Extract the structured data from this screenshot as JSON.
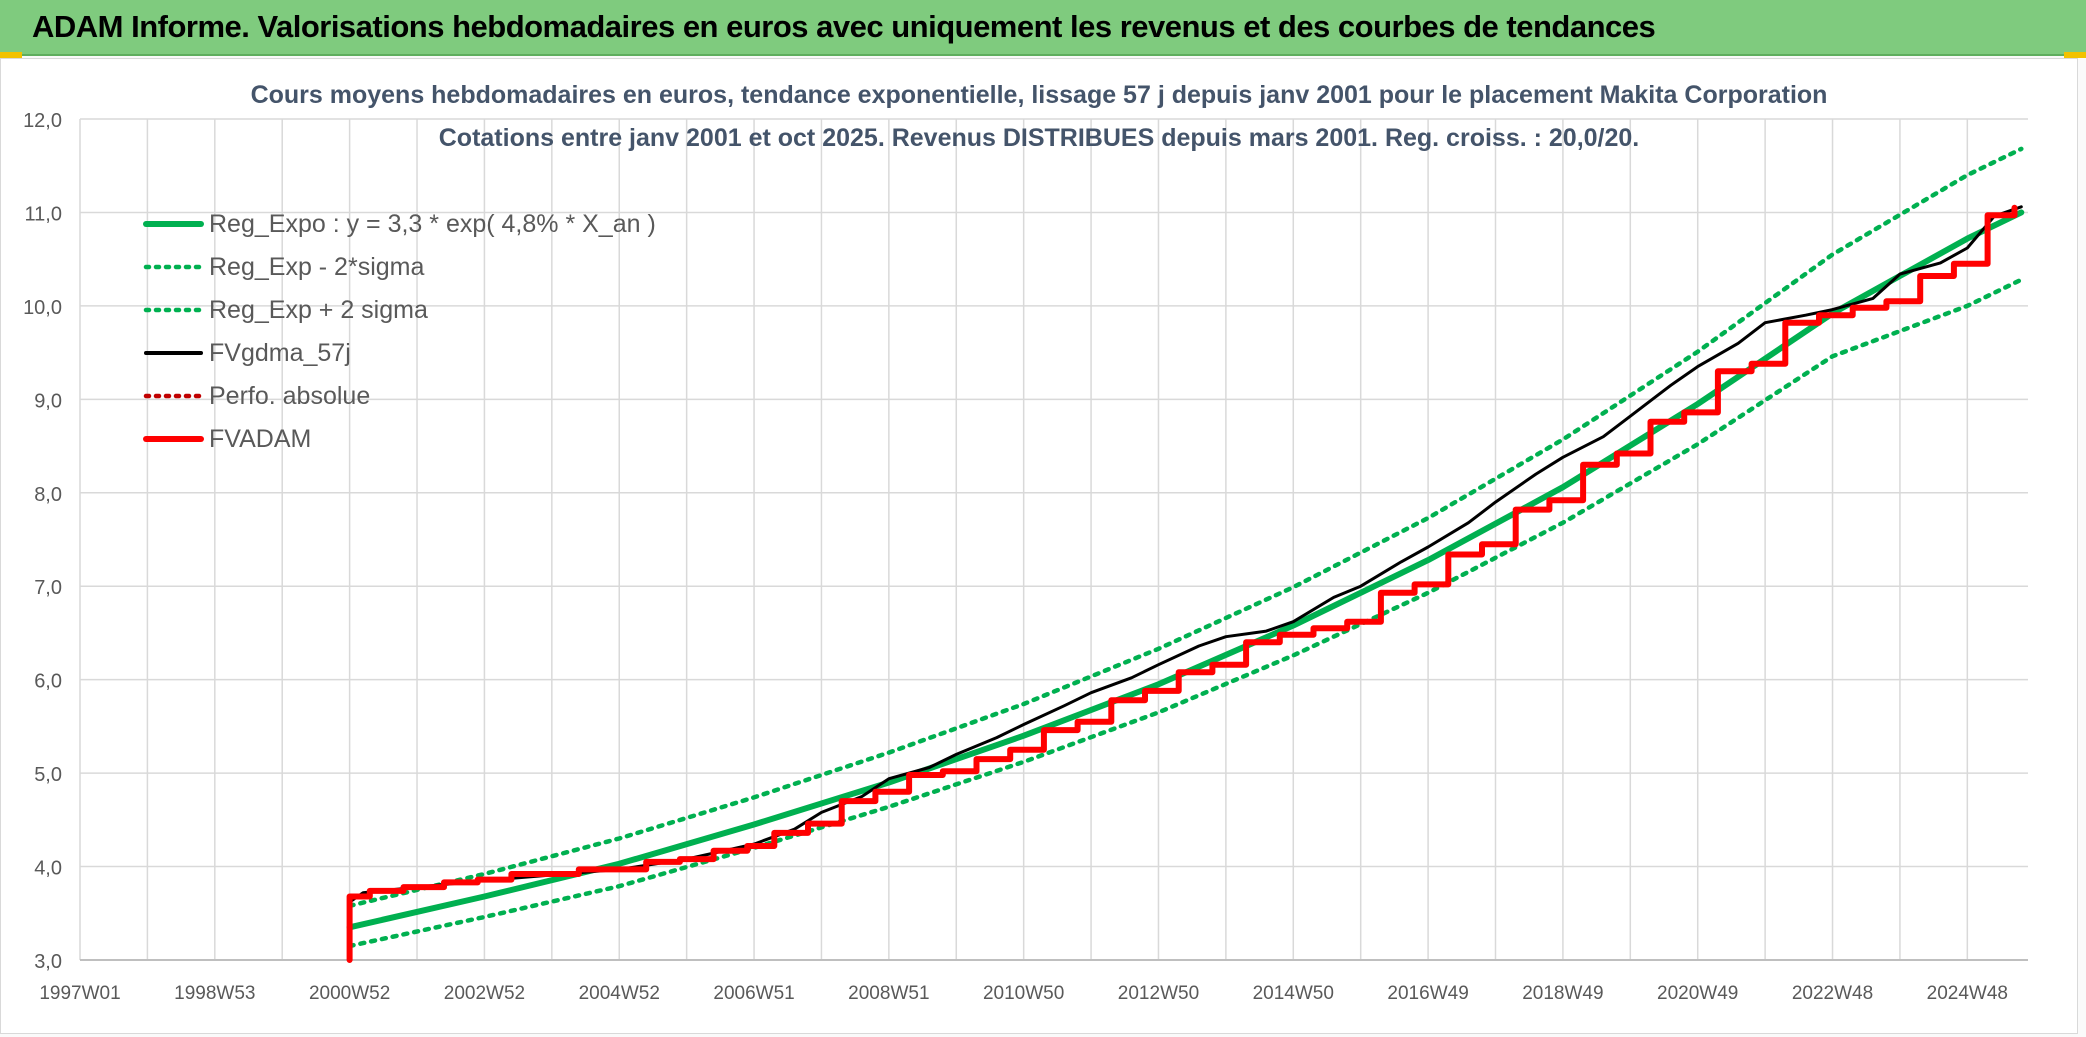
{
  "banner": {
    "title": "ADAM Informe. Valorisations hebdomadaires en euros avec uniquement les revenus et des courbes de tendances"
  },
  "colors": {
    "banner_bg": "#7fcb7e",
    "reg_line": "#00b050",
    "fvgdma": "#000000",
    "fvadam": "#ff0000",
    "perfo": "#c00000",
    "grid": "#d9d9d9",
    "title_text": "#44546a"
  },
  "chart_data": {
    "type": "line",
    "title": "Cours moyens hebdomadaires en euros, tendance exponentielle, lissage 57 j depuis janv 2001 pour le placement Makita Corporation",
    "subtitle": "Cotations entre janv 2001 et oct 2025. Revenus DISTRIBUES depuis mars 2001. Reg. croiss. : 20,0/20.",
    "xlabel": "",
    "ylabel": "",
    "ylim": [
      3.0,
      12.0
    ],
    "yticks": [
      "3,0",
      "4,0",
      "5,0",
      "6,0",
      "7,0",
      "8,0",
      "9,0",
      "10,0",
      "11,0",
      "12,0"
    ],
    "xlim": [
      1997.0,
      2025.9
    ],
    "x_tick_positions": [
      1997.0,
      1999.0,
      2001.0,
      2003.0,
      2005.0,
      2007.0,
      2009.0,
      2011.0,
      2013.0,
      2015.0,
      2017.0,
      2019.0,
      2021.0,
      2023.0,
      2025.0
    ],
    "x_tick_labels": [
      "1997W01",
      "1998W53",
      "2000W52",
      "2002W52",
      "2004W52",
      "2006W51",
      "2008W51",
      "2010W50",
      "2012W50",
      "2014W50",
      "2016W49",
      "2018W49",
      "2020W49",
      "2022W48",
      "2024W48"
    ],
    "grid": true,
    "legend_position": "top-left",
    "legend": [
      {
        "label": "Reg_Expo : y = 3,3 * exp( 4,8% *  X_an )",
        "style": "solid-thick",
        "color": "#00b050"
      },
      {
        "label": "Reg_Exp - 2*sigma",
        "style": "dotted",
        "color": "#00b050"
      },
      {
        "label": "Reg_Exp + 2 sigma",
        "style": "dotted",
        "color": "#00b050"
      },
      {
        "label": "FVgdma_57j",
        "style": "solid",
        "color": "#000000"
      },
      {
        "label": "Perfo. absolue",
        "style": "dotted",
        "color": "#c00000"
      },
      {
        "label": "FVADAM",
        "style": "solid-thick",
        "color": "#ff0000"
      }
    ],
    "series": [
      {
        "name": "Reg_Expo : y = 3,3 * exp( 4,8% *  X_an )",
        "x": [
          2001.0,
          2003.0,
          2005.0,
          2007.0,
          2009.0,
          2011.0,
          2013.0,
          2015.0,
          2017.0,
          2019.0,
          2021.0,
          2023.0,
          2025.0,
          2025.8
        ],
        "values": [
          3.35,
          3.68,
          4.03,
          4.45,
          4.9,
          5.4,
          5.95,
          6.58,
          7.28,
          8.06,
          8.95,
          9.92,
          10.72,
          11.0
        ]
      },
      {
        "name": "Reg_Exp - 2*sigma",
        "x": [
          2001.0,
          2003.0,
          2005.0,
          2007.0,
          2009.0,
          2011.0,
          2013.0,
          2015.0,
          2017.0,
          2019.0,
          2021.0,
          2023.0,
          2025.0,
          2025.8
        ],
        "values": [
          3.15,
          3.46,
          3.79,
          4.2,
          4.64,
          5.12,
          5.65,
          6.26,
          6.93,
          7.68,
          8.52,
          9.46,
          10.0,
          10.28
        ]
      },
      {
        "name": "Reg_Exp + 2 sigma",
        "x": [
          2001.0,
          2003.0,
          2005.0,
          2007.0,
          2009.0,
          2011.0,
          2013.0,
          2015.0,
          2017.0,
          2019.0,
          2021.0,
          2023.0,
          2025.0,
          2025.8
        ],
        "values": [
          3.58,
          3.92,
          4.3,
          4.74,
          5.22,
          5.74,
          6.33,
          6.99,
          7.73,
          8.57,
          9.51,
          10.55,
          11.4,
          11.68
        ]
      },
      {
        "name": "FVgdma_57j",
        "x": [
          2001.0,
          2001.2,
          2002.0,
          2003.0,
          2004.0,
          2005.0,
          2006.0,
          2006.5,
          2007.0,
          2007.6,
          2008.0,
          2008.6,
          2009.0,
          2009.6,
          2010.0,
          2010.6,
          2011.0,
          2011.6,
          2012.0,
          2012.6,
          2013.0,
          2013.6,
          2014.0,
          2014.6,
          2015.0,
          2015.6,
          2016.0,
          2016.6,
          2017.0,
          2017.6,
          2018.0,
          2018.6,
          2019.0,
          2019.6,
          2020.0,
          2020.6,
          2021.0,
          2021.6,
          2022.0,
          2022.6,
          2023.0,
          2023.6,
          2024.0,
          2024.6,
          2025.0,
          2025.4,
          2025.8
        ],
        "values": [
          3.62,
          3.72,
          3.78,
          3.85,
          3.91,
          3.97,
          4.08,
          4.16,
          4.24,
          4.4,
          4.58,
          4.75,
          4.94,
          5.06,
          5.2,
          5.38,
          5.52,
          5.72,
          5.86,
          6.02,
          6.16,
          6.36,
          6.46,
          6.52,
          6.62,
          6.88,
          7.0,
          7.26,
          7.42,
          7.68,
          7.9,
          8.2,
          8.38,
          8.6,
          8.82,
          9.15,
          9.35,
          9.6,
          9.82,
          9.9,
          9.96,
          10.08,
          10.34,
          10.46,
          10.62,
          10.96,
          11.06
        ]
      },
      {
        "name": "FVADAM",
        "x": [
          2001.0,
          2001.0,
          2001.3,
          2001.3,
          2001.8,
          2001.8,
          2002.4,
          2002.4,
          2002.9,
          2002.9,
          2003.4,
          2003.4,
          2003.9,
          2003.9,
          2004.4,
          2004.4,
          2004.9,
          2004.9,
          2005.4,
          2005.4,
          2005.9,
          2005.9,
          2006.4,
          2006.4,
          2006.9,
          2006.9,
          2007.3,
          2007.3,
          2007.8,
          2007.8,
          2008.3,
          2008.3,
          2008.8,
          2008.8,
          2009.3,
          2009.3,
          2009.8,
          2009.8,
          2010.3,
          2010.3,
          2010.8,
          2010.8,
          2011.3,
          2011.3,
          2011.8,
          2011.8,
          2012.3,
          2012.3,
          2012.8,
          2012.8,
          2013.3,
          2013.3,
          2013.8,
          2013.8,
          2014.3,
          2014.3,
          2014.8,
          2014.8,
          2015.3,
          2015.3,
          2015.8,
          2015.8,
          2016.3,
          2016.3,
          2016.8,
          2016.8,
          2017.3,
          2017.3,
          2017.8,
          2017.8,
          2018.3,
          2018.3,
          2018.8,
          2018.8,
          2019.3,
          2019.3,
          2019.8,
          2019.8,
          2020.3,
          2020.3,
          2020.8,
          2020.8,
          2021.3,
          2021.3,
          2021.8,
          2021.8,
          2022.3,
          2022.3,
          2022.8,
          2022.8,
          2023.3,
          2023.3,
          2023.8,
          2023.8,
          2024.3,
          2024.3,
          2024.8,
          2024.8,
          2025.3,
          2025.3,
          2025.7,
          2025.7
        ],
        "values": [
          3.0,
          3.68,
          3.68,
          3.74,
          3.74,
          3.78,
          3.78,
          3.83,
          3.83,
          3.86,
          3.86,
          3.92,
          3.92,
          3.92,
          3.92,
          3.97,
          3.97,
          3.97,
          3.97,
          4.05,
          4.05,
          4.08,
          4.08,
          4.17,
          4.17,
          4.22,
          4.22,
          4.36,
          4.36,
          4.46,
          4.46,
          4.7,
          4.7,
          4.8,
          4.8,
          4.98,
          4.98,
          5.02,
          5.02,
          5.15,
          5.15,
          5.25,
          5.25,
          5.46,
          5.46,
          5.55,
          5.55,
          5.78,
          5.78,
          5.88,
          5.88,
          6.08,
          6.08,
          6.16,
          6.16,
          6.4,
          6.4,
          6.48,
          6.48,
          6.55,
          6.55,
          6.62,
          6.62,
          6.93,
          6.93,
          7.02,
          7.02,
          7.34,
          7.34,
          7.45,
          7.45,
          7.82,
          7.82,
          7.92,
          7.92,
          8.3,
          8.3,
          8.42,
          8.42,
          8.76,
          8.76,
          8.86,
          8.86,
          9.3,
          9.3,
          9.38,
          9.38,
          9.82,
          9.82,
          9.9,
          9.9,
          9.98,
          9.98,
          10.05,
          10.05,
          10.32,
          10.32,
          10.45,
          10.45,
          10.97,
          10.97,
          11.05
        ]
      }
    ]
  }
}
